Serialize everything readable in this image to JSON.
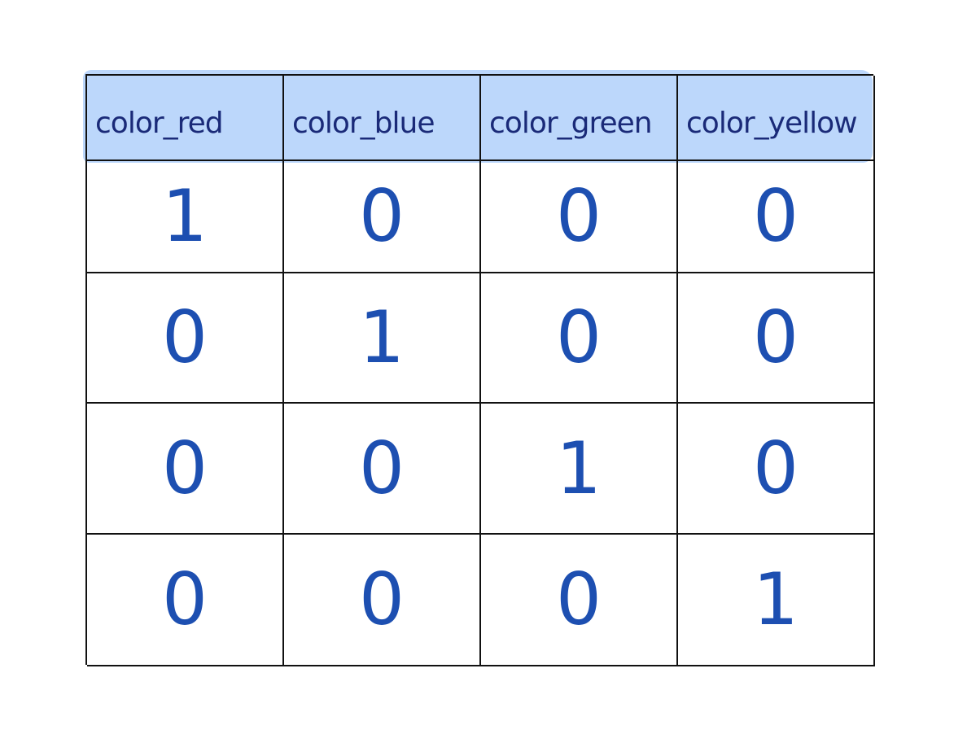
{
  "table": {
    "headers": [
      "color_red",
      "color_blue",
      "color_green",
      "color_yellow"
    ],
    "rows": [
      [
        "1",
        "0",
        "0",
        "0"
      ],
      [
        "0",
        "1",
        "0",
        "0"
      ],
      [
        "0",
        "0",
        "1",
        "0"
      ],
      [
        "0",
        "0",
        "0",
        "1"
      ]
    ]
  },
  "colors": {
    "header_highlight": "#bcd7fb",
    "header_text": "#1a2a78",
    "value_text": "#1d4fb1",
    "grid_lines": "#111111"
  }
}
